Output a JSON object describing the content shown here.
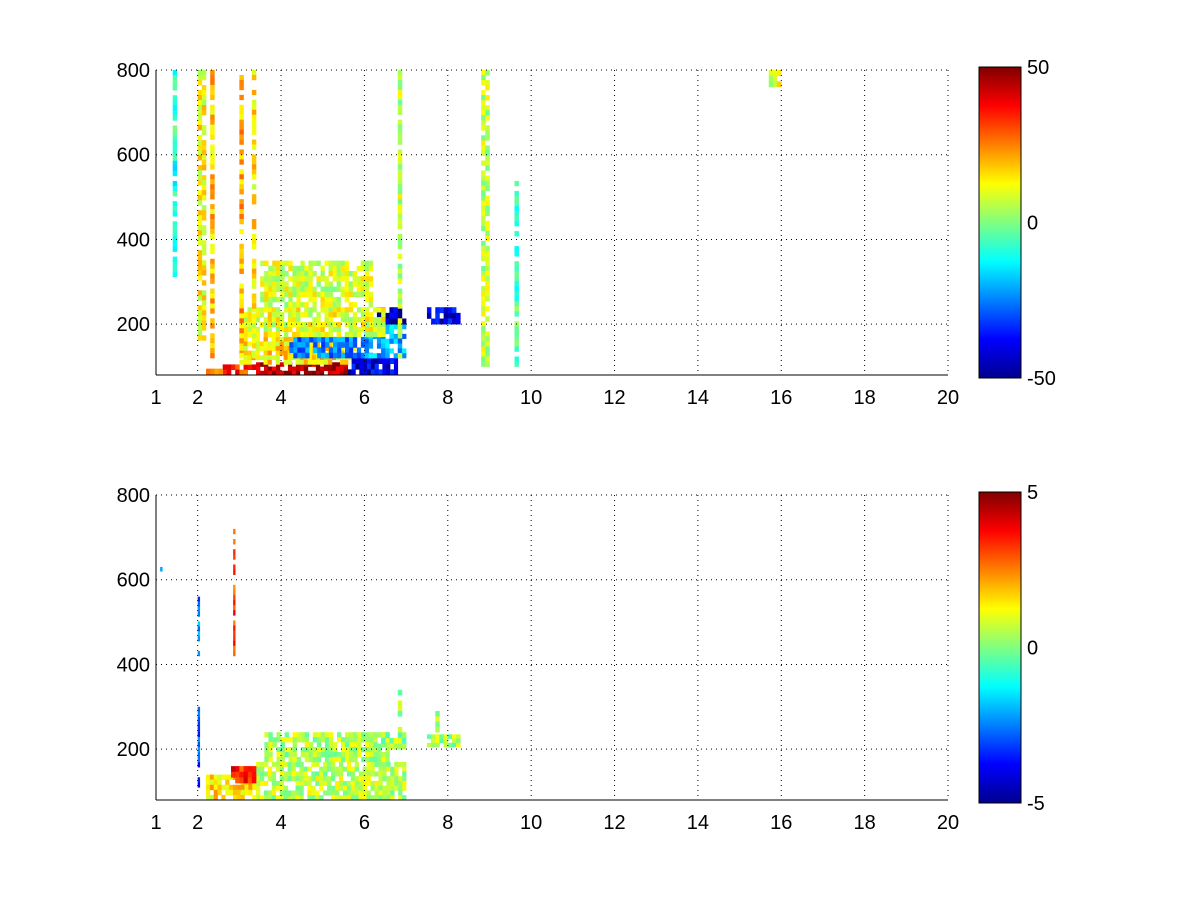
{
  "chart_data": [
    {
      "type": "heatmap",
      "title": "",
      "xlabel": "",
      "ylabel": "",
      "xlim": [
        1,
        20
      ],
      "ylim": [
        80,
        800
      ],
      "grid": true,
      "xticks": [
        1,
        2,
        4,
        6,
        8,
        10,
        12,
        14,
        16,
        18,
        20
      ],
      "yticks": [
        200,
        400,
        600,
        800
      ],
      "colorbar": {
        "min": -50,
        "max": 50,
        "ticks": [
          50,
          0,
          -50
        ],
        "colormap": "jet"
      },
      "regions": [
        {
          "x": [
            3.4,
            5.6
          ],
          "y": [
            80,
            110
          ],
          "value": 45
        },
        {
          "x": [
            2.6,
            3.4
          ],
          "y": [
            80,
            105
          ],
          "value": 32
        },
        {
          "x": [
            2.2,
            2.6
          ],
          "y": [
            80,
            95
          ],
          "value": 22
        },
        {
          "x": [
            3.0,
            5.8
          ],
          "y": [
            105,
            170
          ],
          "value": 15
        },
        {
          "x": [
            5.6,
            6.8
          ],
          "y": [
            80,
            120
          ],
          "value": -40
        },
        {
          "x": [
            4.2,
            6.2
          ],
          "y": [
            120,
            170
          ],
          "value": -25
        },
        {
          "x": [
            6.0,
            7.0
          ],
          "y": [
            120,
            200
          ],
          "value": -20
        },
        {
          "x": [
            6.3,
            7.0
          ],
          "y": [
            200,
            240
          ],
          "value": -45
        },
        {
          "x": [
            7.5,
            8.3
          ],
          "y": [
            200,
            240
          ],
          "value": -40
        },
        {
          "x": [
            3.0,
            6.5
          ],
          "y": [
            170,
            240
          ],
          "value": 10
        },
        {
          "x": [
            3.5,
            6.2
          ],
          "y": [
            240,
            350
          ],
          "value": 8
        },
        {
          "x": [
            1.4,
            1.5
          ],
          "y": [
            300,
            800
          ],
          "value": -8
        },
        {
          "x": [
            2.0,
            2.2
          ],
          "y": [
            150,
            800
          ],
          "value": 12
        },
        {
          "x": [
            2.3,
            2.4
          ],
          "y": [
            120,
            800
          ],
          "value": 18
        },
        {
          "x": [
            3.0,
            3.1
          ],
          "y": [
            120,
            800
          ],
          "value": 20
        },
        {
          "x": [
            3.3,
            3.4
          ],
          "y": [
            120,
            800
          ],
          "value": 14
        },
        {
          "x": [
            6.8,
            6.9
          ],
          "y": [
            120,
            800
          ],
          "value": 6
        },
        {
          "x": [
            9.6,
            9.7
          ],
          "y": [
            100,
            550
          ],
          "value": -4
        },
        {
          "x": [
            8.8,
            9.0
          ],
          "y": [
            100,
            800
          ],
          "value": 6
        },
        {
          "x": [
            15.7,
            16.0
          ],
          "y": [
            760,
            800
          ],
          "value": 10
        }
      ]
    },
    {
      "type": "heatmap",
      "title": "",
      "xlabel": "",
      "ylabel": "",
      "xlim": [
        1,
        20
      ],
      "ylim": [
        80,
        800
      ],
      "grid": true,
      "xticks": [
        1,
        2,
        4,
        6,
        8,
        10,
        12,
        14,
        16,
        18,
        20
      ],
      "yticks": [
        200,
        400,
        600,
        800
      ],
      "colorbar": {
        "min": -5,
        "max": 5,
        "ticks": [
          5,
          0,
          -5
        ],
        "colormap": "jet"
      },
      "regions": [
        {
          "x": [
            3.4,
            7.0
          ],
          "y": [
            80,
            170
          ],
          "value": 0.6
        },
        {
          "x": [
            3.6,
            6.6
          ],
          "y": [
            170,
            240
          ],
          "value": 0.5
        },
        {
          "x": [
            6.3,
            7.0
          ],
          "y": [
            200,
            240
          ],
          "value": 0.3
        },
        {
          "x": [
            7.5,
            8.3
          ],
          "y": [
            205,
            235
          ],
          "value": 0.4
        },
        {
          "x": [
            2.2,
            3.4
          ],
          "y": [
            80,
            140
          ],
          "value": 1.5
        },
        {
          "x": [
            2.8,
            3.4
          ],
          "y": [
            120,
            160
          ],
          "value": 3.5
        },
        {
          "x": [
            2.0,
            2.05
          ],
          "y": [
            110,
            300
          ],
          "value": -3
        },
        {
          "x": [
            2.85,
            2.9
          ],
          "y": [
            420,
            720
          ],
          "value": 3
        },
        {
          "x": [
            2.0,
            2.05
          ],
          "y": [
            420,
            560
          ],
          "value": -2.5
        },
        {
          "x": [
            1.1,
            1.15
          ],
          "y": [
            620,
            630
          ],
          "value": -3
        },
        {
          "x": [
            6.8,
            6.9
          ],
          "y": [
            240,
            340
          ],
          "value": 0.4
        },
        {
          "x": [
            7.7,
            7.8
          ],
          "y": [
            240,
            290
          ],
          "value": 0.4
        }
      ]
    }
  ]
}
